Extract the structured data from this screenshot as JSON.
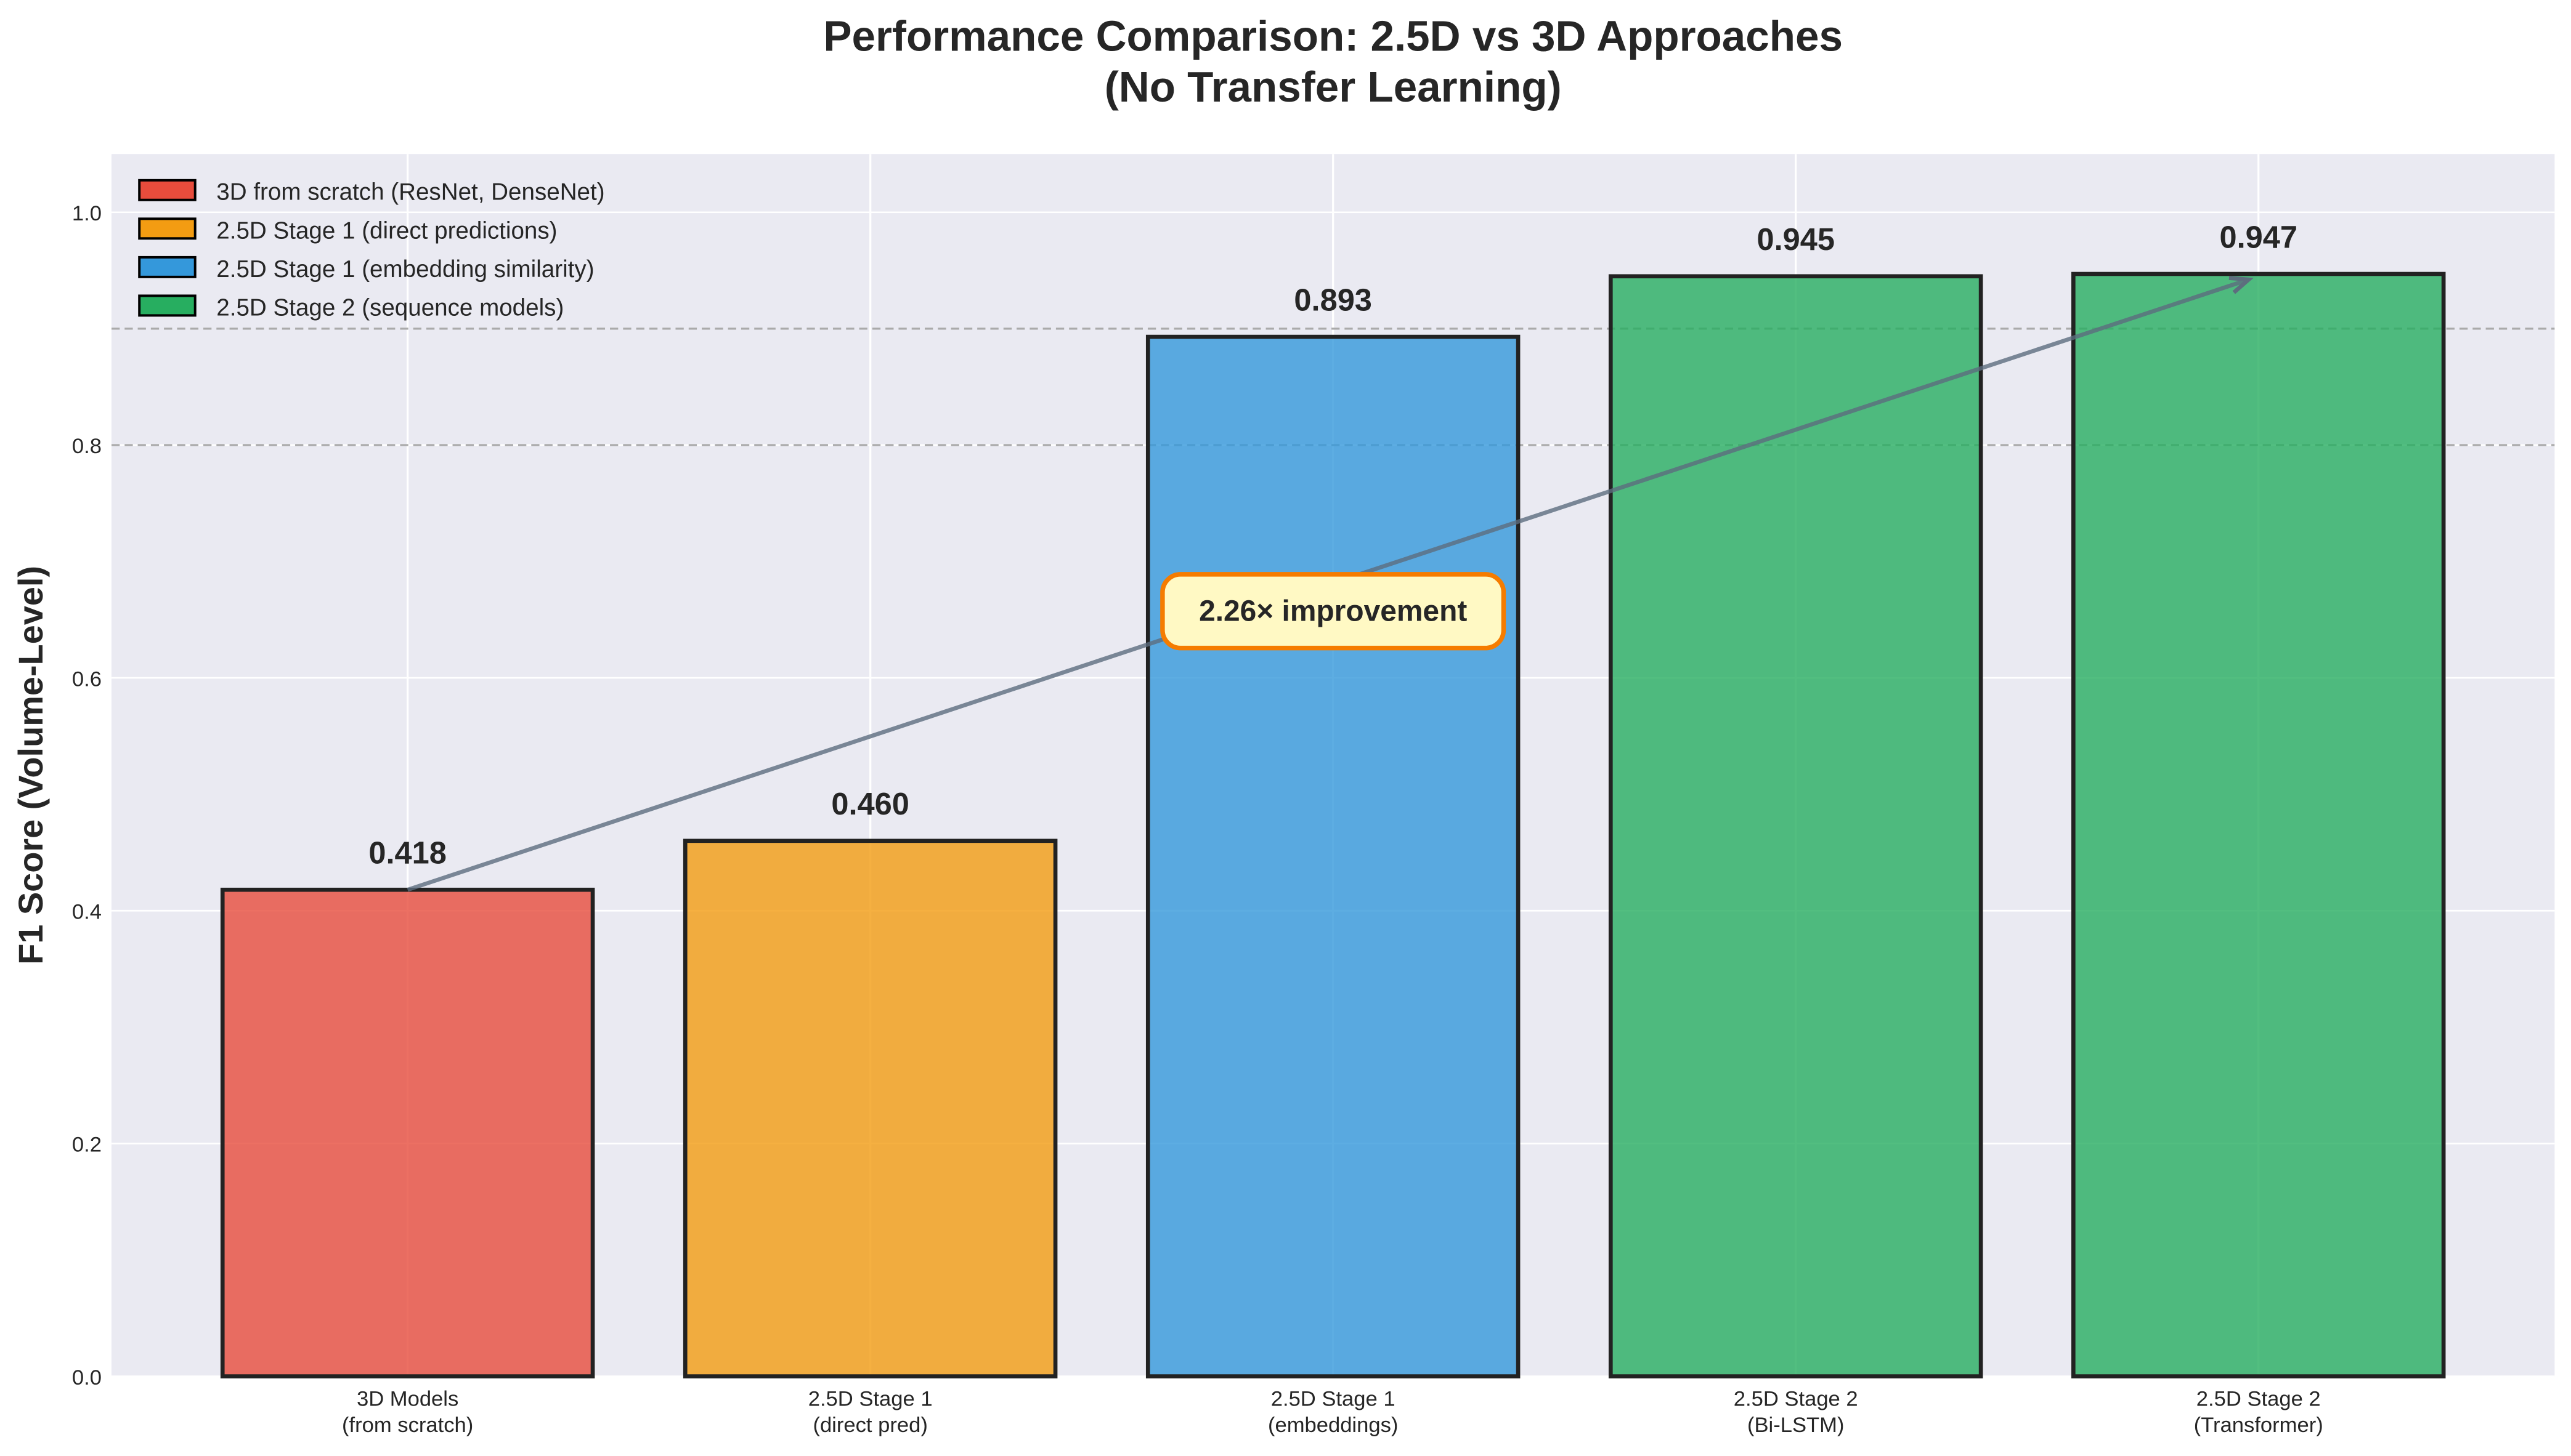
{
  "chart_data": {
    "type": "bar",
    "title": "Performance Comparison: 2.5D vs 3D Approaches",
    "subtitle": "(No Transfer Learning)",
    "xlabel": "",
    "ylabel": "F1 Score (Volume-Level)",
    "ylim": [
      0,
      1.05
    ],
    "yticks": [
      "0.0",
      "0.2",
      "0.4",
      "0.6",
      "0.8",
      "1.0"
    ],
    "grid": true,
    "categories": [
      [
        "3D Models",
        "(from scratch)"
      ],
      [
        "2.5D Stage 1",
        "(direct pred)"
      ],
      [
        "2.5D Stage 1",
        "(embeddings)"
      ],
      [
        "2.5D Stage 2",
        "(Bi-LSTM)"
      ],
      [
        "2.5D Stage 2",
        "(Transformer)"
      ]
    ],
    "values": [
      0.418,
      0.46,
      0.893,
      0.945,
      0.947
    ],
    "value_labels": [
      "0.418",
      "0.460",
      "0.893",
      "0.945",
      "0.947"
    ],
    "bar_groups": [
      0,
      1,
      2,
      3,
      3
    ],
    "reference_lines": [
      0.8,
      0.9
    ],
    "legend": {
      "placement": "upper-left",
      "entries": [
        {
          "label": "3D from scratch (ResNet, DenseNet)",
          "color": "#e74c3c"
        },
        {
          "label": "2.5D Stage 1 (direct predictions)",
          "color": "#f39c12"
        },
        {
          "label": "2.5D Stage 1 (embedding similarity)",
          "color": "#3498db"
        },
        {
          "label": "2.5D Stage 2 (sequence models)",
          "color": "#27ae60"
        }
      ]
    },
    "annotation": {
      "text": "2.26× improvement",
      "arrow_from": {
        "category": 0,
        "value": 0.418
      },
      "arrow_to": {
        "category": 4,
        "value": 0.945
      },
      "text_at": {
        "category": 2,
        "value": 0.658
      },
      "box_fill": "#fff9c4",
      "box_edge": "#f57c00",
      "arrow_color": "#5d6d7e"
    },
    "colors": {
      "background": "#eaeaf2",
      "edge": "#222222"
    }
  }
}
